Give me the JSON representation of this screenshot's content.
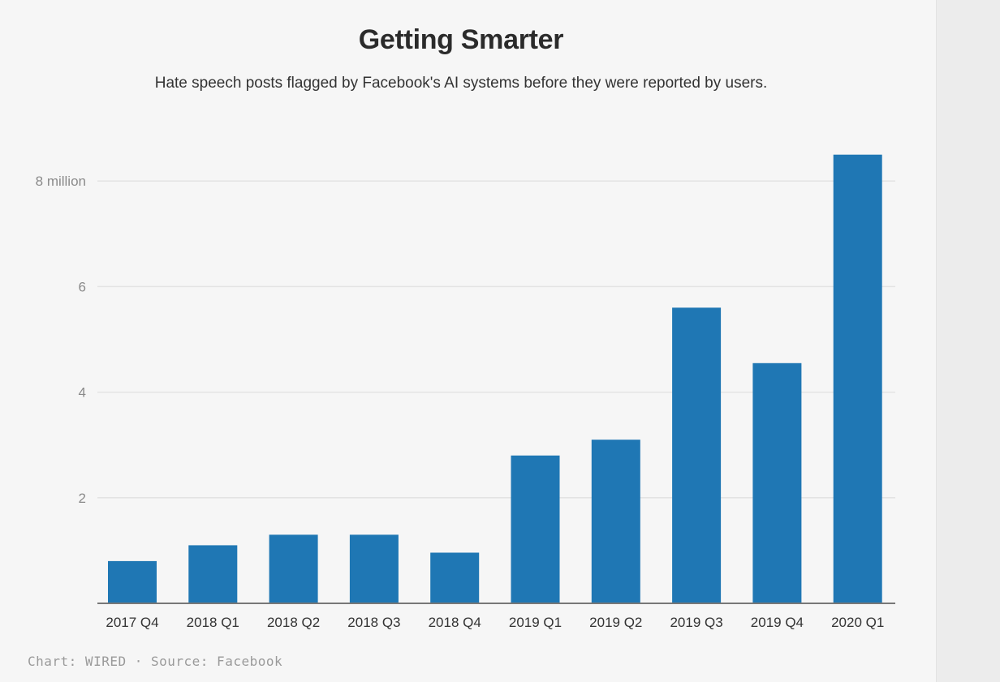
{
  "chart_data": {
    "type": "bar",
    "title": "Getting Smarter",
    "subtitle": "Hate speech posts flagged by Facebook's AI systems before they were reported by users.",
    "categories": [
      "2017 Q4",
      "2018 Q1",
      "2018 Q2",
      "2018 Q3",
      "2018 Q4",
      "2019 Q1",
      "2019 Q2",
      "2019 Q3",
      "2019 Q4",
      "2020 Q1"
    ],
    "values": [
      0.8,
      1.1,
      1.3,
      1.3,
      0.96,
      2.8,
      3.1,
      5.6,
      4.55,
      8.5
    ],
    "unit": "million",
    "yticks": [
      {
        "value": 2,
        "label": "2"
      },
      {
        "value": 4,
        "label": "4"
      },
      {
        "value": 6,
        "label": "6"
      },
      {
        "value": 8,
        "label": "8 million"
      }
    ],
    "ylim": [
      0,
      8.5
    ],
    "grid": true,
    "colors": {
      "bar": "#1f77b4",
      "grid": "#e3e3e3",
      "axis": "#777777"
    },
    "credit": "Chart: WIRED · Source: Facebook"
  }
}
